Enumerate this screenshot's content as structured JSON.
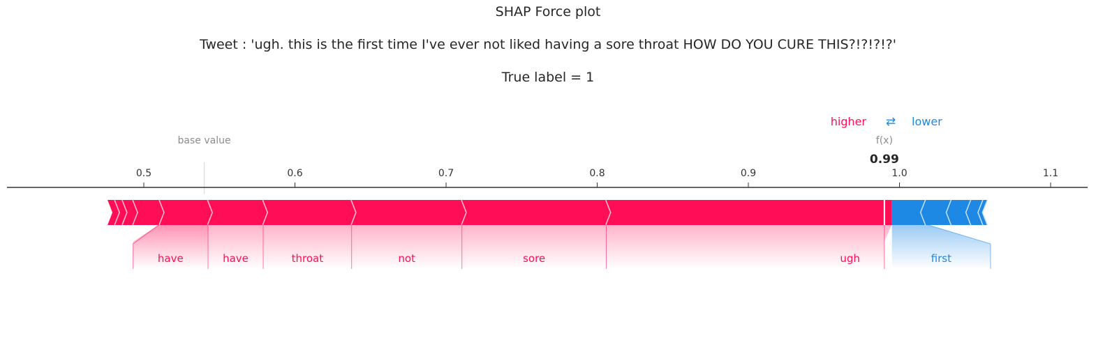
{
  "titles": {
    "main": "SHAP Force plot",
    "tweet": "Tweet : 'ugh. this is the first time I've ever not liked having a sore throat  HOW DO YOU CURE THIS?!?!?!?'",
    "label": "True label = 1"
  },
  "legend": {
    "higher": "higher",
    "arrows": "⇄",
    "lower": "lower"
  },
  "colors": {
    "positive": "#ff0d57",
    "negative": "#1e88e5",
    "axis": "#333333",
    "muted": "#8c8c8c"
  },
  "chart_data": {
    "type": "force",
    "base_value_label": "base value",
    "output_label": "f(x)",
    "output_value": 0.99,
    "output_value_text": "0.99",
    "base_value": 0.54,
    "xlim": [
      0.455,
      1.17
    ],
    "ticks": [
      {
        "value": 0.5,
        "label": "0.5"
      },
      {
        "value": 0.6,
        "label": "0.6"
      },
      {
        "value": 0.7,
        "label": "0.7"
      },
      {
        "value": 0.8,
        "label": "0.8"
      },
      {
        "value": 0.9,
        "label": "0.9"
      },
      {
        "value": 1.0,
        "label": "1.0"
      },
      {
        "value": 1.1,
        "label": "1.1"
      }
    ],
    "positive_segments": [
      {
        "feature": "",
        "from": 0.476,
        "to": 0.481
      },
      {
        "feature": "",
        "from": 0.481,
        "to": 0.486
      },
      {
        "feature": "",
        "from": 0.486,
        "to": 0.493
      },
      {
        "feature": "",
        "from": 0.493,
        "to": 0.5105
      },
      {
        "feature": "have",
        "from": 0.5105,
        "to": 0.5425
      },
      {
        "feature": "have",
        "from": 0.5425,
        "to": 0.579
      },
      {
        "feature": "throat",
        "from": 0.579,
        "to": 0.6375
      },
      {
        "feature": "not",
        "from": 0.6375,
        "to": 0.7105
      },
      {
        "feature": "sore",
        "from": 0.7105,
        "to": 0.806
      },
      {
        "feature": "ugh",
        "from": 0.806,
        "to": 0.995
      }
    ],
    "negative_segments": [
      {
        "feature": "first",
        "from": 0.995,
        "to": 1.0175
      },
      {
        "feature": "",
        "from": 1.0175,
        "to": 1.0345
      },
      {
        "feature": "",
        "from": 1.0345,
        "to": 1.0475
      },
      {
        "feature": "",
        "from": 1.0475,
        "to": 1.0555
      },
      {
        "feature": "",
        "from": 1.0555,
        "to": 1.0585
      }
    ]
  }
}
